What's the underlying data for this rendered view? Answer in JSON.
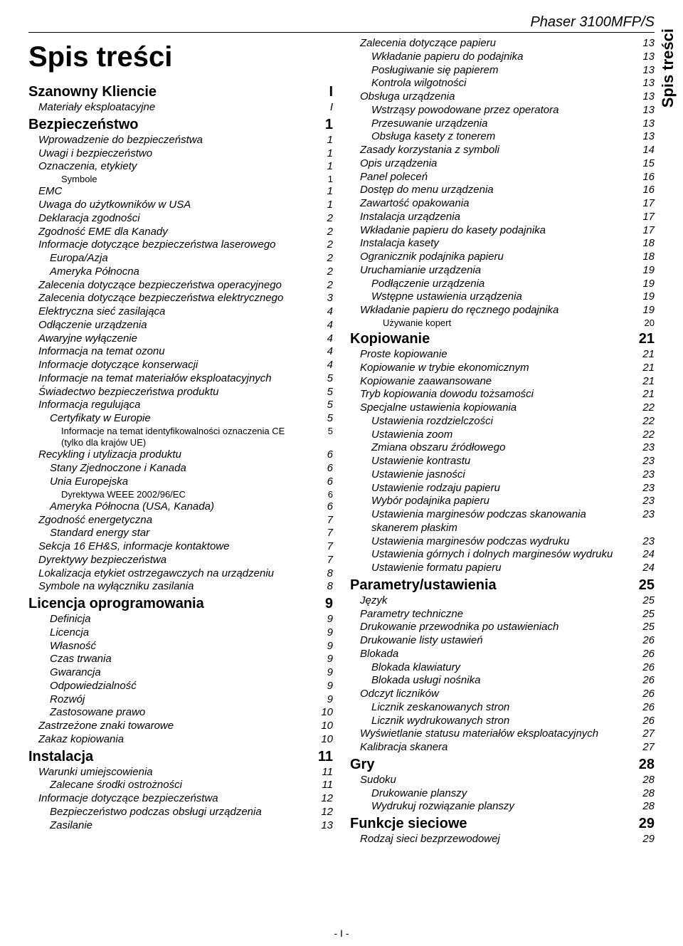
{
  "header": "Phaser 3100MFP/S",
  "title": "Spis treści",
  "side_tab": "Spis treści",
  "footer": "- I -",
  "left": [
    {
      "lv": 0,
      "t": "Szanowny Kliencie",
      "p": "I"
    },
    {
      "lv": 1,
      "t": "Materiały eksploatacyjne",
      "p": "I"
    },
    {
      "lv": 0,
      "t": "Bezpieczeństwo",
      "p": "1"
    },
    {
      "lv": 1,
      "t": "Wprowadzenie do bezpieczeństwa",
      "p": "1"
    },
    {
      "lv": 1,
      "t": "Uwagi i bezpieczeństwo",
      "p": "1"
    },
    {
      "lv": 1,
      "t": "Oznaczenia, etykiety",
      "p": "1"
    },
    {
      "lv": 3,
      "t": "Symbole",
      "p": "1"
    },
    {
      "lv": 1,
      "t": "EMC",
      "p": "1"
    },
    {
      "lv": 1,
      "t": "Uwaga do użytkowników w USA",
      "p": "1"
    },
    {
      "lv": 1,
      "t": "Deklaracja zgodności",
      "p": "2"
    },
    {
      "lv": 1,
      "t": "Zgodność EME dla Kanady",
      "p": "2"
    },
    {
      "lv": 1,
      "t": "Informacje dotyczące bezpieczeństwa laserowego",
      "p": "2"
    },
    {
      "lv": 2,
      "t": "Europa/Azja",
      "p": "2"
    },
    {
      "lv": 2,
      "t": "Ameryka Północna",
      "p": "2"
    },
    {
      "lv": 1,
      "t": "Zalecenia dotyczące bezpieczeństwa operacyjnego",
      "p": "2"
    },
    {
      "lv": 1,
      "t": "Zalecenia dotyczące bezpieczeństwa elektrycznego",
      "p": "3"
    },
    {
      "lv": 1,
      "t": "Elektryczna sieć zasilająca",
      "p": "4"
    },
    {
      "lv": 1,
      "t": "Odłączenie urządzenia",
      "p": "4"
    },
    {
      "lv": 1,
      "t": "Awaryjne wyłączenie",
      "p": "4"
    },
    {
      "lv": 1,
      "t": "Informacja na temat ozonu",
      "p": "4"
    },
    {
      "lv": 1,
      "t": "Informacje dotyczące konserwacji",
      "p": "4"
    },
    {
      "lv": 1,
      "t": "Informacje na temat materiałów eksploatacyjnych",
      "p": "5"
    },
    {
      "lv": 1,
      "t": "Świadectwo bezpieczeństwa produktu",
      "p": "5"
    },
    {
      "lv": 1,
      "t": "Informacja regulująca",
      "p": "5"
    },
    {
      "lv": 2,
      "t": "Certyfikaty w Europie",
      "p": "5"
    },
    {
      "lv": 3,
      "t": "Informacje na temat identyfikowalności oznaczenia CE (tylko dla krajów UE)",
      "p": "5"
    },
    {
      "lv": 1,
      "t": "Recykling i utylizacja produktu",
      "p": "6"
    },
    {
      "lv": 2,
      "t": "Stany Zjednoczone i Kanada",
      "p": "6"
    },
    {
      "lv": 2,
      "t": "Unia Europejska",
      "p": "6"
    },
    {
      "lv": 3,
      "t": "Dyrektywa WEEE 2002/96/EC",
      "p": "6"
    },
    {
      "lv": 2,
      "t": "Ameryka Północna (USA, Kanada)",
      "p": "6"
    },
    {
      "lv": 1,
      "t": "Zgodność energetyczna",
      "p": "7"
    },
    {
      "lv": 2,
      "t": "Standard energy star",
      "p": "7"
    },
    {
      "lv": 1,
      "t": "Sekcja 16 EH&S, informacje kontaktowe",
      "p": "7"
    },
    {
      "lv": 1,
      "t": "Dyrektywy bezpieczeństwa",
      "p": "7"
    },
    {
      "lv": 1,
      "t": "Lokalizacja etykiet ostrzegawczych na urządzeniu",
      "p": "8"
    },
    {
      "lv": 1,
      "t": "Symbole na wyłączniku zasilania",
      "p": "8"
    },
    {
      "lv": 0,
      "t": "Licencja oprogramowania",
      "p": "9"
    },
    {
      "lv": 2,
      "t": "Definicja",
      "p": "9"
    },
    {
      "lv": 2,
      "t": "Licencja",
      "p": "9"
    },
    {
      "lv": 2,
      "t": "Własność",
      "p": "9"
    },
    {
      "lv": 2,
      "t": "Czas trwania",
      "p": "9"
    },
    {
      "lv": 2,
      "t": "Gwarancja",
      "p": "9"
    },
    {
      "lv": 2,
      "t": "Odpowiedzialność",
      "p": "9"
    },
    {
      "lv": 2,
      "t": "Rozwój",
      "p": "9"
    },
    {
      "lv": 2,
      "t": "Zastosowane prawo",
      "p": "10"
    },
    {
      "lv": 1,
      "t": "Zastrzeżone znaki towarowe",
      "p": "10"
    },
    {
      "lv": 1,
      "t": "Zakaz kopiowania",
      "p": "10"
    },
    {
      "lv": 0,
      "t": "Instalacja",
      "p": "11"
    },
    {
      "lv": 1,
      "t": "Warunki umiejscowienia",
      "p": "11"
    },
    {
      "lv": 2,
      "t": "Zalecane środki ostrożności",
      "p": "11"
    },
    {
      "lv": 1,
      "t": "Informacje dotyczące bezpieczeństwa",
      "p": "12"
    },
    {
      "lv": 2,
      "t": "Bezpieczeństwo podczas obsługi urządzenia",
      "p": "12"
    },
    {
      "lv": 2,
      "t": "Zasilanie",
      "p": "13"
    }
  ],
  "right": [
    {
      "lv": 1,
      "t": "Zalecenia dotyczące papieru",
      "p": "13"
    },
    {
      "lv": 2,
      "t": "Wkładanie papieru do podajnika",
      "p": "13"
    },
    {
      "lv": 2,
      "t": "Posługiwanie się papierem",
      "p": "13"
    },
    {
      "lv": 2,
      "t": "Kontrola wilgotności",
      "p": "13"
    },
    {
      "lv": 1,
      "t": "Obsługa urządzenia",
      "p": "13"
    },
    {
      "lv": 2,
      "t": "Wstrząsy powodowane przez operatora",
      "p": "13"
    },
    {
      "lv": 2,
      "t": "Przesuwanie urządzenia",
      "p": "13"
    },
    {
      "lv": 2,
      "t": "Obsługa kasety z tonerem",
      "p": "13"
    },
    {
      "lv": 1,
      "t": "Zasady korzystania z symboli",
      "p": "14"
    },
    {
      "lv": 1,
      "t": "Opis urządzenia",
      "p": "15"
    },
    {
      "lv": 1,
      "t": "Panel poleceń",
      "p": "16"
    },
    {
      "lv": 1,
      "t": "Dostęp do menu urządzenia",
      "p": "16"
    },
    {
      "lv": 1,
      "t": "Zawartość opakowania",
      "p": "17"
    },
    {
      "lv": 1,
      "t": "Instalacja urządzenia",
      "p": "17"
    },
    {
      "lv": 1,
      "t": "Wkładanie papieru do kasety podajnika",
      "p": "17"
    },
    {
      "lv": 1,
      "t": "Instalacja kasety",
      "p": "18"
    },
    {
      "lv": 1,
      "t": "Ogranicznik podajnika papieru",
      "p": "18"
    },
    {
      "lv": 1,
      "t": "Uruchamianie urządzenia",
      "p": "19"
    },
    {
      "lv": 2,
      "t": "Podłączenie urządzenia",
      "p": "19"
    },
    {
      "lv": 2,
      "t": "Wstępne ustawienia urządzenia",
      "p": "19"
    },
    {
      "lv": 1,
      "t": "Wkładanie papieru do ręcznego podajnika",
      "p": "19"
    },
    {
      "lv": 3,
      "t": "Używanie kopert",
      "p": "20"
    },
    {
      "lv": 0,
      "t": "Kopiowanie",
      "p": "21"
    },
    {
      "lv": 1,
      "t": "Proste kopiowanie",
      "p": "21"
    },
    {
      "lv": 1,
      "t": "Kopiowanie w trybie ekonomicznym",
      "p": "21"
    },
    {
      "lv": 1,
      "t": "Kopiowanie zaawansowane",
      "p": "21"
    },
    {
      "lv": 1,
      "t": "Tryb kopiowania dowodu tożsamości",
      "p": "21"
    },
    {
      "lv": 1,
      "t": "Specjalne ustawienia kopiowania",
      "p": "22"
    },
    {
      "lv": 2,
      "t": "Ustawienia rozdzielczości",
      "p": "22"
    },
    {
      "lv": 2,
      "t": "Ustawienia zoom",
      "p": "22"
    },
    {
      "lv": 2,
      "t": "Zmiana obszaru źródłowego",
      "p": "23"
    },
    {
      "lv": 2,
      "t": "Ustawienie kontrastu",
      "p": "23"
    },
    {
      "lv": 2,
      "t": "Ustawienie jasności",
      "p": "23"
    },
    {
      "lv": 2,
      "t": "Ustawienie rodzaju papieru",
      "p": "23"
    },
    {
      "lv": 2,
      "t": "Wybór podajnika papieru",
      "p": "23"
    },
    {
      "lv": 2,
      "t": "Ustawienia marginesów podczas skanowania skanerem płaskim",
      "p": "23"
    },
    {
      "lv": 2,
      "t": "Ustawienia marginesów podczas wydruku",
      "p": "23"
    },
    {
      "lv": 2,
      "t": "Ustawienia górnych i dolnych marginesów wydruku",
      "p": "24"
    },
    {
      "lv": 2,
      "t": "Ustawienie formatu papieru",
      "p": "24"
    },
    {
      "lv": 0,
      "t": "Parametry/ustawienia",
      "p": "25"
    },
    {
      "lv": 1,
      "t": "Język",
      "p": "25"
    },
    {
      "lv": 1,
      "t": "Parametry techniczne",
      "p": "25"
    },
    {
      "lv": 1,
      "t": "Drukowanie przewodnika po ustawieniach",
      "p": "25"
    },
    {
      "lv": 1,
      "t": "Drukowanie listy ustawień",
      "p": "26"
    },
    {
      "lv": 1,
      "t": "Blokada",
      "p": "26"
    },
    {
      "lv": 2,
      "t": "Blokada klawiatury",
      "p": "26"
    },
    {
      "lv": 2,
      "t": "Blokada usługi nośnika",
      "p": "26"
    },
    {
      "lv": 1,
      "t": "Odczyt liczników",
      "p": "26"
    },
    {
      "lv": 2,
      "t": "Licznik zeskanowanych stron",
      "p": "26"
    },
    {
      "lv": 2,
      "t": "Licznik wydrukowanych stron",
      "p": "26"
    },
    {
      "lv": 1,
      "t": "Wyświetlanie statusu materiałów eksploatacyjnych",
      "p": "27"
    },
    {
      "lv": 1,
      "t": "Kalibracja skanera",
      "p": "27"
    },
    {
      "lv": 0,
      "t": "Gry",
      "p": "28"
    },
    {
      "lv": 1,
      "t": "Sudoku",
      "p": "28"
    },
    {
      "lv": 2,
      "t": "Drukowanie planszy",
      "p": "28"
    },
    {
      "lv": 2,
      "t": "Wydrukuj rozwiązanie planszy",
      "p": "28"
    },
    {
      "lv": 0,
      "t": "Funkcje sieciowe",
      "p": "29"
    },
    {
      "lv": 1,
      "t": "Rodzaj sieci bezprzewodowej",
      "p": "29"
    }
  ]
}
